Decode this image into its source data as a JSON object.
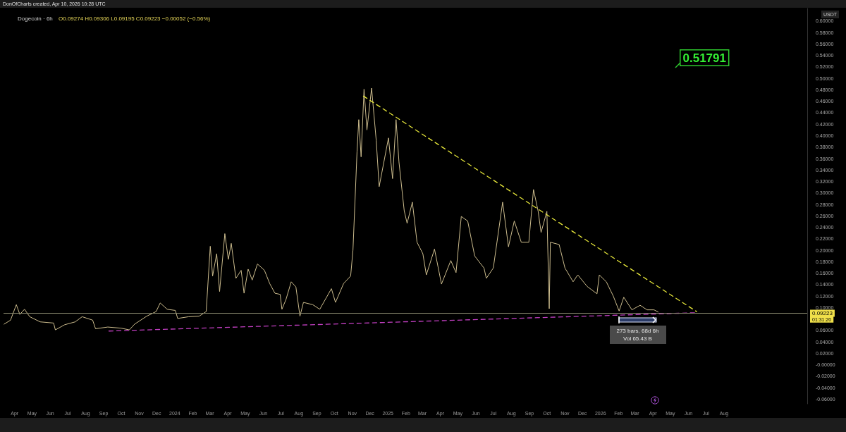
{
  "chart_data": {
    "type": "line",
    "title": "Dogecoin · 6h",
    "subtitle": "O0.09274 H0.09306 L0.09195 C0.09223 −0.00052 (−0.56%)",
    "ylabel": "USDT",
    "annotations": [
      "DonOfCharts created, Apr 10, 2026 10:28 UTC",
      "Vol 65.43 B",
      "01:31:20",
      "0.51791",
      "273 bars, 68d 6h"
    ],
    "xlim": [
      "2023-03-13",
      "2026-12-22"
    ],
    "xticks": [
      {
        "value": "2023-04-01",
        "label": "Apr"
      },
      {
        "value": "2023-05-01",
        "label": "May"
      },
      {
        "value": "2023-06-01",
        "label": "Jun"
      },
      {
        "value": "2023-07-01",
        "label": "Jul"
      },
      {
        "value": "2023-08-01",
        "label": "Aug"
      },
      {
        "value": "2023-09-01",
        "label": "Sep"
      },
      {
        "value": "2023-10-01",
        "label": "Oct"
      },
      {
        "value": "2023-11-01",
        "label": "Nov"
      },
      {
        "value": "2023-12-01",
        "label": "Dec"
      },
      {
        "value": "2024-01-01",
        "label": "2024"
      },
      {
        "value": "2024-02-01",
        "label": "Feb"
      },
      {
        "value": "2024-03-01",
        "label": "Mar"
      },
      {
        "value": "2024-04-01",
        "label": "Apr"
      },
      {
        "value": "2024-05-01",
        "label": "May"
      },
      {
        "value": "2024-06-01",
        "label": "Jun"
      },
      {
        "value": "2024-07-01",
        "label": "Jul"
      },
      {
        "value": "2024-08-01",
        "label": "Aug"
      },
      {
        "value": "2024-09-01",
        "label": "Sep"
      },
      {
        "value": "2024-10-01",
        "label": "Oct"
      },
      {
        "value": "2024-11-01",
        "label": "Nov"
      },
      {
        "value": "2024-12-01",
        "label": "Dec"
      },
      {
        "value": "2025-01-01",
        "label": "2025"
      },
      {
        "value": "2025-02-01",
        "label": "Feb"
      },
      {
        "value": "2025-03-01",
        "label": "Mar"
      },
      {
        "value": "2025-04-01",
        "label": "Apr"
      },
      {
        "value": "2025-05-01",
        "label": "May"
      },
      {
        "value": "2025-06-01",
        "label": "Jun"
      },
      {
        "value": "2025-07-01",
        "label": "Jul"
      },
      {
        "value": "2025-08-01",
        "label": "Aug"
      },
      {
        "value": "2025-09-01",
        "label": "Sep"
      },
      {
        "value": "2025-10-01",
        "label": "Oct"
      },
      {
        "value": "2025-11-01",
        "label": "Nov"
      },
      {
        "value": "2025-12-01",
        "label": "Dec"
      },
      {
        "value": "2026-01-01",
        "label": "2026"
      },
      {
        "value": "2026-02-01",
        "label": "Feb"
      },
      {
        "value": "2026-03-01",
        "label": "Mar"
      },
      {
        "value": "2026-04-01",
        "label": "Apr"
      },
      {
        "value": "2026-05-01",
        "label": "May"
      },
      {
        "value": "2026-06-01",
        "label": "Jun"
      },
      {
        "value": "2026-07-01",
        "label": "Jul"
      },
      {
        "value": "2026-08-01",
        "label": "Aug"
      }
    ],
    "ylim": [
      -0.068,
      0.622
    ],
    "yticks": [
      {
        "value": -0.06,
        "label": "-0.06000"
      },
      {
        "value": -0.04,
        "label": "-0.04000"
      },
      {
        "value": -0.02,
        "label": "-0.02000"
      },
      {
        "value": 0,
        "label": "-0.00000"
      },
      {
        "value": 0.02,
        "label": "0.02000"
      },
      {
        "value": 0.04,
        "label": "0.04000"
      },
      {
        "value": 0.06,
        "label": "0.06000"
      },
      {
        "value": 0.1,
        "label": "0.10000"
      },
      {
        "value": 0.12,
        "label": "0.12000"
      },
      {
        "value": 0.14,
        "label": "0.14000"
      },
      {
        "value": 0.16,
        "label": "0.16000"
      },
      {
        "value": 0.18,
        "label": "0.18000"
      },
      {
        "value": 0.2,
        "label": "0.20000"
      },
      {
        "value": 0.22,
        "label": "0.22000"
      },
      {
        "value": 0.24,
        "label": "0.24000"
      },
      {
        "value": 0.26,
        "label": "0.26000"
      },
      {
        "value": 0.28,
        "label": "0.28000"
      },
      {
        "value": 0.3,
        "label": "0.30000"
      },
      {
        "value": 0.32,
        "label": "0.32000"
      },
      {
        "value": 0.34,
        "label": "0.34000"
      },
      {
        "value": 0.36,
        "label": "0.36000"
      },
      {
        "value": 0.38,
        "label": "0.38000"
      },
      {
        "value": 0.4,
        "label": "0.40000"
      },
      {
        "value": 0.42,
        "label": "0.42000"
      },
      {
        "value": 0.44,
        "label": "0.44000"
      },
      {
        "value": 0.46,
        "label": "0.46000"
      },
      {
        "value": 0.48,
        "label": "0.48000"
      },
      {
        "value": 0.5,
        "label": "0.50000"
      },
      {
        "value": 0.52,
        "label": "0.52000"
      },
      {
        "value": 0.54,
        "label": "0.54000"
      },
      {
        "value": 0.56,
        "label": "0.56000"
      },
      {
        "value": 0.58,
        "label": "0.58000"
      },
      {
        "value": 0.6,
        "label": "0.60000"
      }
    ],
    "ref_lines": [
      {
        "axis": "y",
        "value": 0.09223,
        "label": "0.09223",
        "color": "#8a8a70"
      }
    ],
    "series": [
      {
        "color": "#cdbd8e",
        "line_style": "solid",
        "x": [
          "2023-03-14",
          "2023-03-25",
          "2023-04-04",
          "2023-04-10",
          "2023-04-18",
          "2023-04-27",
          "2023-05-15",
          "2023-06-07",
          "2023-06-10",
          "2023-06-26",
          "2023-07-14",
          "2023-07-26",
          "2023-08-13",
          "2023-08-18",
          "2023-09-08",
          "2023-10-01",
          "2023-10-15",
          "2023-10-24",
          "2023-11-14",
          "2023-11-30",
          "2023-12-07",
          "2023-12-19",
          "2024-01-02",
          "2024-01-06",
          "2024-01-25",
          "2024-02-12",
          "2024-02-24",
          "2024-03-02",
          "2024-03-06",
          "2024-03-13",
          "2024-03-18",
          "2024-03-27",
          "2024-04-02",
          "2024-04-07",
          "2024-04-15",
          "2024-04-24",
          "2024-04-29",
          "2024-05-06",
          "2024-05-13",
          "2024-05-22",
          "2024-06-03",
          "2024-06-12",
          "2024-06-21",
          "2024-06-30",
          "2024-07-03",
          "2024-07-10",
          "2024-07-19",
          "2024-07-27",
          "2024-08-03",
          "2024-08-09",
          "2024-08-25",
          "2024-09-06",
          "2024-09-26",
          "2024-10-03",
          "2024-10-17",
          "2024-10-29",
          "2024-11-02",
          "2024-11-09",
          "2024-11-12",
          "2024-11-16",
          "2024-11-21",
          "2024-11-26",
          "2024-12-04",
          "2024-12-12",
          "2024-12-17",
          "2025-01-02",
          "2025-01-09",
          "2025-01-15",
          "2025-01-20",
          "2025-01-29",
          "2025-02-03",
          "2025-02-12",
          "2025-02-20",
          "2025-03-02",
          "2025-03-08",
          "2025-03-22",
          "2025-04-03",
          "2025-04-19",
          "2025-04-28",
          "2025-05-07",
          "2025-05-18",
          "2025-05-30",
          "2025-06-15",
          "2025-06-19",
          "2025-07-01",
          "2025-07-17",
          "2025-07-27",
          "2025-08-06",
          "2025-08-18",
          "2025-08-31",
          "2025-09-08",
          "2025-09-16",
          "2025-09-21",
          "2025-10-01",
          "2025-10-05",
          "2025-10-07",
          "2025-10-22",
          "2025-11-01",
          "2025-11-15",
          "2025-11-23",
          "2025-12-09",
          "2025-12-26",
          "2025-12-30",
          "2026-01-11",
          "2026-01-23",
          "2026-02-02",
          "2026-02-10",
          "2026-02-24",
          "2026-03-10",
          "2026-03-22",
          "2026-04-03",
          "2026-04-10"
        ],
        "values": [
          0.071,
          0.078,
          0.105,
          0.088,
          0.097,
          0.084,
          0.075,
          0.073,
          0.061,
          0.07,
          0.075,
          0.084,
          0.078,
          0.063,
          0.066,
          0.064,
          0.061,
          0.071,
          0.085,
          0.093,
          0.108,
          0.097,
          0.095,
          0.081,
          0.084,
          0.085,
          0.093,
          0.207,
          0.155,
          0.194,
          0.128,
          0.229,
          0.184,
          0.212,
          0.151,
          0.165,
          0.125,
          0.167,
          0.148,
          0.176,
          0.165,
          0.142,
          0.125,
          0.123,
          0.097,
          0.114,
          0.145,
          0.136,
          0.085,
          0.109,
          0.105,
          0.097,
          0.133,
          0.109,
          0.142,
          0.155,
          0.2,
          0.372,
          0.428,
          0.363,
          0.481,
          0.41,
          0.483,
          0.391,
          0.311,
          0.396,
          0.325,
          0.428,
          0.354,
          0.269,
          0.247,
          0.284,
          0.214,
          0.194,
          0.157,
          0.202,
          0.141,
          0.182,
          0.161,
          0.259,
          0.251,
          0.19,
          0.169,
          0.151,
          0.169,
          0.284,
          0.206,
          0.251,
          0.214,
          0.214,
          0.306,
          0.268,
          0.231,
          0.268,
          0.098,
          0.214,
          0.21,
          0.169,
          0.145,
          0.157,
          0.137,
          0.124,
          0.157,
          0.145,
          0.12,
          0.094,
          0.118,
          0.096,
          0.104,
          0.096,
          0.096,
          0.09223
        ]
      },
      {
        "color": "#e8e83a",
        "line_style": "dashed",
        "x": [
          "2024-11-20",
          "2026-06-15"
        ],
        "values": [
          0.469,
          0.093
        ]
      },
      {
        "color": "#c23fc2",
        "line_style": "dashed",
        "x": [
          "2023-09-10",
          "2026-06-15"
        ],
        "values": [
          0.059,
          0.091
        ]
      }
    ]
  }
}
